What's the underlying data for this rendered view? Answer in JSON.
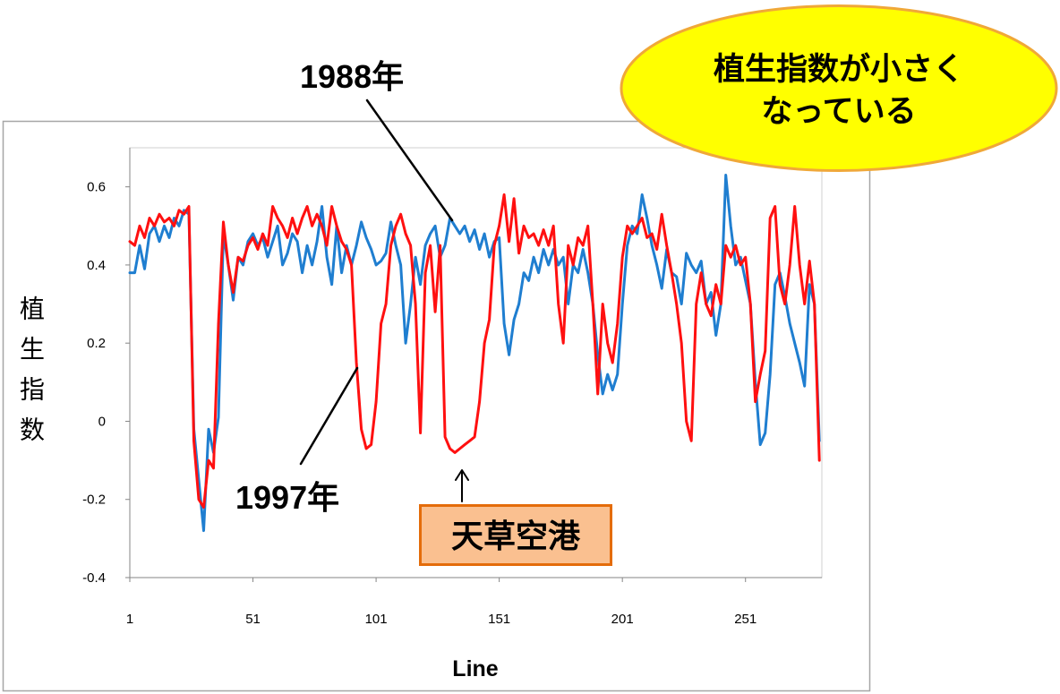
{
  "chart_data": {
    "type": "line",
    "xlabel": "Line",
    "ylabel": "植生指数",
    "xlim": [
      1,
      282
    ],
    "ylim": [
      -0.4,
      0.7
    ],
    "x_ticks": [
      1,
      51,
      101,
      151,
      201,
      251
    ],
    "x_tick_labels": [
      "1",
      "51",
      "101",
      "151",
      "201",
      "251"
    ],
    "y_ticks": [
      -0.4,
      -0.2,
      0,
      0.2,
      0.4,
      0.6
    ],
    "y_tick_labels": [
      "-0.4",
      "-0.2",
      "0",
      "0.2",
      "0.4",
      "0.6"
    ],
    "grid": false,
    "legend": "none",
    "x": [
      1,
      3,
      5,
      7,
      9,
      11,
      13,
      15,
      17,
      19,
      21,
      23,
      25,
      27,
      29,
      31,
      33,
      35,
      37,
      39,
      41,
      43,
      45,
      47,
      49,
      51,
      53,
      55,
      57,
      59,
      61,
      63,
      65,
      67,
      69,
      71,
      73,
      75,
      77,
      79,
      81,
      83,
      85,
      87,
      89,
      91,
      93,
      95,
      97,
      99,
      101,
      103,
      105,
      107,
      109,
      111,
      113,
      115,
      117,
      119,
      121,
      123,
      125,
      127,
      129,
      131,
      133,
      135,
      137,
      139,
      141,
      143,
      145,
      147,
      149,
      151,
      153,
      155,
      157,
      159,
      161,
      163,
      165,
      167,
      169,
      171,
      173,
      175,
      177,
      179,
      181,
      183,
      185,
      187,
      189,
      191,
      193,
      195,
      197,
      199,
      201,
      203,
      205,
      207,
      209,
      211,
      213,
      215,
      217,
      219,
      221,
      223,
      225,
      227,
      229,
      231,
      233,
      235,
      237,
      239,
      241,
      243,
      245,
      247,
      249,
      251,
      253,
      255,
      257,
      259,
      261,
      263,
      265,
      267,
      269,
      271,
      273,
      275,
      277,
      279,
      281
    ],
    "series": [
      {
        "name": "1988年",
        "color": "#1F7ED0",
        "values": [
          0.38,
          0.38,
          0.45,
          0.39,
          0.48,
          0.5,
          0.46,
          0.5,
          0.47,
          0.52,
          0.5,
          0.54,
          0.53,
          -0.02,
          -0.15,
          -0.28,
          -0.02,
          -0.08,
          0.01,
          0.48,
          0.4,
          0.31,
          0.42,
          0.4,
          0.46,
          0.48,
          0.45,
          0.47,
          0.42,
          0.46,
          0.5,
          0.4,
          0.43,
          0.48,
          0.46,
          0.38,
          0.45,
          0.4,
          0.46,
          0.55,
          0.42,
          0.35,
          0.5,
          0.38,
          0.45,
          0.4,
          0.45,
          0.51,
          0.47,
          0.44,
          0.4,
          0.41,
          0.43,
          0.51,
          0.45,
          0.4,
          0.2,
          0.3,
          0.42,
          0.35,
          0.45,
          0.48,
          0.5,
          0.42,
          0.45,
          0.52,
          0.5,
          0.48,
          0.5,
          0.46,
          0.49,
          0.44,
          0.48,
          0.42,
          0.46,
          0.47,
          0.25,
          0.17,
          0.26,
          0.3,
          0.38,
          0.36,
          0.42,
          0.38,
          0.44,
          0.4,
          0.44,
          0.4,
          0.42,
          0.3,
          0.4,
          0.38,
          0.44,
          0.38,
          0.3,
          0.17,
          0.07,
          0.12,
          0.08,
          0.12,
          0.3,
          0.45,
          0.5,
          0.48,
          0.58,
          0.52,
          0.45,
          0.4,
          0.34,
          0.44,
          0.38,
          0.37,
          0.3,
          0.43,
          0.4,
          0.38,
          0.41,
          0.3,
          0.33,
          0.22,
          0.3,
          0.63,
          0.5,
          0.4,
          0.42,
          0.36,
          0.3,
          0.1,
          -0.06,
          -0.03,
          0.12,
          0.35,
          0.38,
          0.32,
          0.25,
          0.2,
          0.15,
          0.09,
          0.35,
          0.3,
          -0.05
        ]
      },
      {
        "name": "1997年",
        "color": "#FF1010",
        "values": [
          0.46,
          0.45,
          0.5,
          0.47,
          0.52,
          0.5,
          0.53,
          0.51,
          0.52,
          0.5,
          0.54,
          0.53,
          0.55,
          -0.05,
          -0.2,
          -0.22,
          -0.1,
          -0.12,
          0.25,
          0.51,
          0.4,
          0.33,
          0.42,
          0.41,
          0.45,
          0.47,
          0.44,
          0.48,
          0.45,
          0.55,
          0.52,
          0.5,
          0.47,
          0.52,
          0.48,
          0.52,
          0.55,
          0.5,
          0.53,
          0.5,
          0.45,
          0.55,
          0.5,
          0.46,
          0.44,
          0.4,
          0.15,
          -0.02,
          -0.07,
          -0.06,
          0.05,
          0.25,
          0.3,
          0.45,
          0.5,
          0.53,
          0.48,
          0.45,
          0.3,
          -0.03,
          0.38,
          0.45,
          0.28,
          0.45,
          -0.04,
          -0.07,
          -0.08,
          -0.07,
          -0.06,
          -0.05,
          -0.04,
          0.05,
          0.2,
          0.26,
          0.45,
          0.5,
          0.58,
          0.46,
          0.57,
          0.43,
          0.5,
          0.47,
          0.48,
          0.45,
          0.49,
          0.45,
          0.5,
          0.3,
          0.2,
          0.45,
          0.4,
          0.47,
          0.45,
          0.5,
          0.3,
          0.07,
          0.3,
          0.2,
          0.15,
          0.25,
          0.42,
          0.5,
          0.48,
          0.5,
          0.52,
          0.47,
          0.48,
          0.44,
          0.53,
          0.45,
          0.38,
          0.3,
          0.2,
          0.0,
          -0.05,
          0.3,
          0.38,
          0.3,
          0.27,
          0.35,
          0.3,
          0.45,
          0.42,
          0.45,
          0.4,
          0.42,
          0.3,
          0.05,
          0.12,
          0.18,
          0.52,
          0.55,
          0.35,
          0.3,
          0.4,
          0.55,
          0.4,
          0.3,
          0.41,
          0.3,
          -0.1
        ]
      }
    ],
    "annotations": {
      "airport": "天草空港",
      "callout": [
        "植生指数が小さく",
        "なっている"
      ]
    }
  },
  "colors": {
    "callout_fill": "#FFFF00",
    "callout_border": "#F0A838",
    "airport_box_fill": "#FAC090",
    "airport_box_border": "#E46C0A"
  }
}
